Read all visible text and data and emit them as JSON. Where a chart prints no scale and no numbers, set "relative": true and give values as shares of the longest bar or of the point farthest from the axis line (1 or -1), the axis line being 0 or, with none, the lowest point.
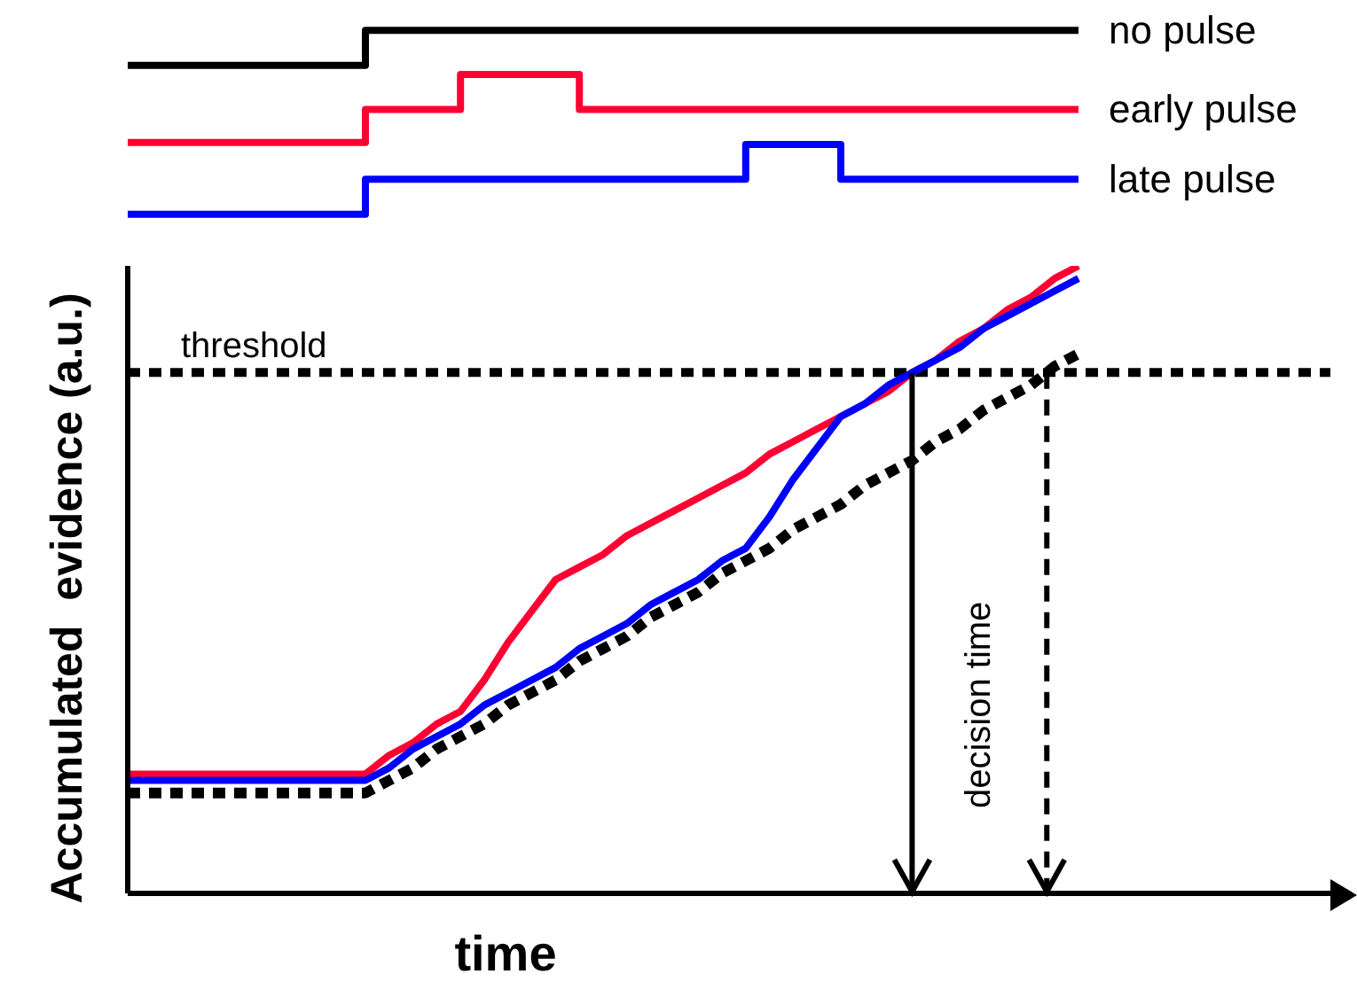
{
  "chart_data": [
    {
      "type": "step",
      "relative": true,
      "categories": [
        null,
        null,
        null,
        null,
        null,
        null,
        null,
        null,
        null,
        null,
        null,
        null,
        null,
        null,
        null,
        null,
        null,
        null,
        null,
        null,
        null,
        null,
        null,
        null,
        null,
        null,
        null,
        null,
        null,
        null,
        null,
        null,
        null,
        null,
        null,
        null,
        null,
        null,
        null,
        null,
        null
      ],
      "series": [
        {
          "name": "no pulse",
          "color": "#000000",
          "values": [
            0.81,
            0.81,
            0.81,
            0.81,
            0.81,
            0.81,
            0.81,
            0.81,
            0.81,
            0.81,
            1,
            1,
            1,
            1,
            1,
            1,
            1,
            1,
            1,
            1,
            1,
            1,
            1,
            1,
            1,
            1,
            1,
            1,
            1,
            1,
            1,
            1,
            1,
            1,
            1,
            1,
            1,
            1,
            1,
            1,
            1
          ]
        },
        {
          "name": "early pulse",
          "color": "#ff0033",
          "values": [
            0.39,
            0.39,
            0.39,
            0.39,
            0.39,
            0.39,
            0.39,
            0.39,
            0.39,
            0.39,
            0.57,
            0.57,
            0.57,
            0.57,
            0.76,
            0.76,
            0.76,
            0.76,
            0.76,
            0.57,
            0.57,
            0.57,
            0.57,
            0.57,
            0.57,
            0.57,
            0.57,
            0.57,
            0.57,
            0.57,
            0.57,
            0.57,
            0.57,
            0.57,
            0.57,
            0.57,
            0.57,
            0.57,
            0.57,
            0.57,
            0.57
          ]
        },
        {
          "name": "late pulse",
          "color": "#0000ff",
          "values": [
            0,
            0,
            0,
            0,
            0,
            0,
            0,
            0,
            0,
            0,
            0.19,
            0.19,
            0.19,
            0.19,
            0.19,
            0.19,
            0.19,
            0.19,
            0.19,
            0.19,
            0.19,
            0.19,
            0.19,
            0.19,
            0.19,
            0.19,
            0.38,
            0.38,
            0.38,
            0.38,
            0.19,
            0.19,
            0.19,
            0.19,
            0.19,
            0.19,
            0.19,
            0.19,
            0.19,
            0.19,
            0.19
          ]
        }
      ]
    },
    {
      "type": "line",
      "relative": true,
      "xlabel": "time",
      "ylabel": "Accumulated  evidence (a.u.)",
      "categories": [
        null,
        null,
        null,
        null,
        null,
        null,
        null,
        null,
        null,
        null,
        null,
        null,
        null,
        null,
        null,
        null,
        null,
        null,
        null,
        null,
        null,
        null,
        null,
        null,
        null,
        null,
        null,
        null,
        null,
        null,
        null,
        null,
        null,
        null,
        null,
        null,
        null,
        null,
        null,
        null,
        null
      ],
      "series": [
        {
          "color": "#000000",
          "line_style": "dotted",
          "values": [
            0.16,
            0.16,
            0.16,
            0.16,
            0.16,
            0.16,
            0.16,
            0.16,
            0.16,
            0.16,
            0.16,
            0.18,
            0.2,
            0.23,
            0.25,
            0.27,
            0.3,
            0.32,
            0.34,
            0.37,
            0.39,
            0.41,
            0.44,
            0.46,
            0.48,
            0.51,
            0.53,
            0.55,
            0.58,
            0.6,
            0.62,
            0.65,
            0.67,
            0.69,
            0.72,
            0.74,
            0.77,
            0.79,
            0.81,
            0.84,
            0.86
          ]
        },
        {
          "color": "#ff0033",
          "values": [
            0.19,
            0.19,
            0.19,
            0.19,
            0.19,
            0.19,
            0.19,
            0.19,
            0.19,
            0.19,
            0.19,
            0.22,
            0.24,
            0.27,
            0.29,
            0.34,
            0.4,
            0.45,
            0.5,
            0.52,
            0.54,
            0.57,
            0.59,
            0.61,
            0.63,
            0.65,
            0.67,
            0.7,
            0.72,
            0.74,
            0.76,
            0.78,
            0.8,
            0.83,
            0.85,
            0.88,
            0.9,
            0.93,
            0.95,
            0.98,
            1
          ]
        },
        {
          "color": "#0000ff",
          "values": [
            0.18,
            0.18,
            0.18,
            0.18,
            0.18,
            0.18,
            0.18,
            0.18,
            0.18,
            0.18,
            0.18,
            0.2,
            0.23,
            0.25,
            0.27,
            0.3,
            0.32,
            0.34,
            0.36,
            0.39,
            0.41,
            0.43,
            0.46,
            0.48,
            0.5,
            0.53,
            0.55,
            0.6,
            0.66,
            0.71,
            0.76,
            0.78,
            0.81,
            0.83,
            0.85,
            0.87,
            0.9,
            0.92,
            0.94,
            0.96,
            0.98
          ]
        }
      ],
      "ref_lines": [
        {
          "axis": "y",
          "value": 0.83,
          "label": "threshold",
          "color": "#000000",
          "line_style": "dotted"
        }
      ],
      "annotations": [
        "decision time"
      ]
    }
  ]
}
